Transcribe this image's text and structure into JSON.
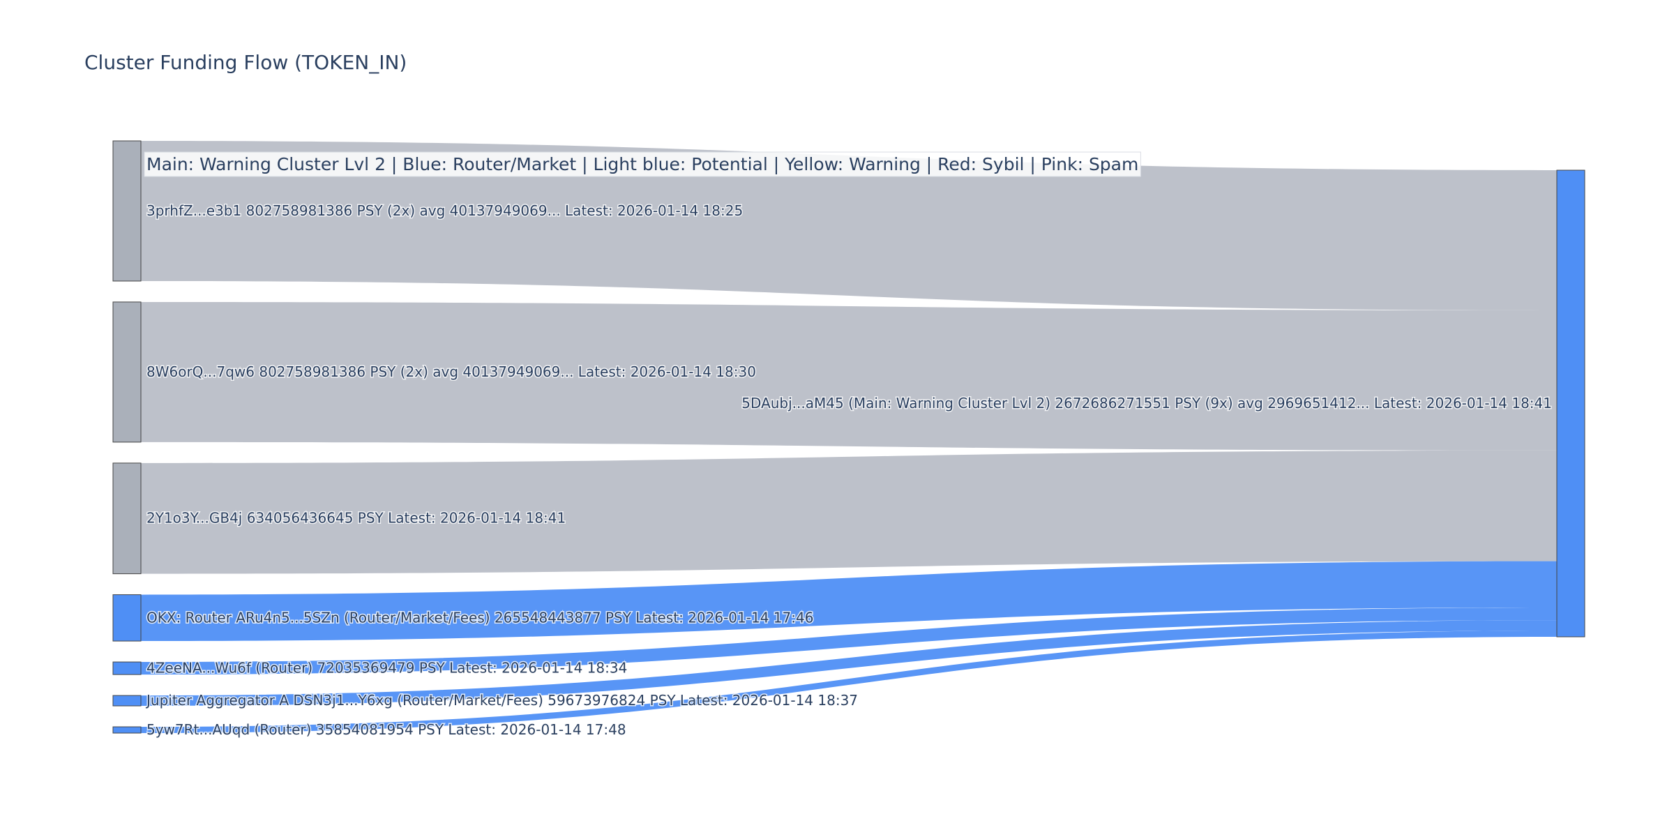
{
  "chart_data": {
    "type": "sankey",
    "title": "Cluster Funding Flow (TOKEN_IN)",
    "annotation": "Main: Warning Cluster Lvl 2  |  Blue: Router/Market | Light blue: Potential | Yellow: Warning | Red: Sybil | Pink: Spam",
    "nodes": [
      {
        "label": "3prhfZ...e3b1 802758981386 PSY (2x) avg 40137949069... Latest: 2026-01-14 18:25",
        "color": "#aab0ba"
      },
      {
        "label": "8W6orQ...7qw6 802758981386 PSY (2x) avg 40137949069... Latest: 2026-01-14 18:30",
        "color": "#aab0ba"
      },
      {
        "label": "2Y1o3Y...GB4j 634056436645 PSY Latest: 2026-01-14 18:41",
        "color": "#aab0ba"
      },
      {
        "label": "OKX: Router ARu4n5...5SZn (Router/Market/Fees) 265548443877 PSY Latest: 2026-01-14 17:46",
        "color": "#4f8ff5"
      },
      {
        "label": "4ZeeNA...Wu6f (Router) 72035369479 PSY Latest: 2026-01-14 18:34",
        "color": "#4f8ff5"
      },
      {
        "label": "Jupiter Aggregator A DSN3j1...Y6xg (Router/Market/Fees) 59673976824 PSY Latest: 2026-01-14 18:37",
        "color": "#4f8ff5"
      },
      {
        "label": "5yw7Rt...AUqd (Router) 35854081954 PSY Latest: 2026-01-14 17:48",
        "color": "#4f8ff5"
      },
      {
        "label": "5DAubj...aM45 (Main: Warning Cluster Lvl 2) 2672686271551 PSY (9x) avg 2969651412... Latest: 2026-01-14 18:41",
        "color": "#4f8ff5"
      }
    ],
    "links": [
      {
        "source": 0,
        "target": 7,
        "value": 802758981386,
        "color": "#b9bec7"
      },
      {
        "source": 1,
        "target": 7,
        "value": 802758981386,
        "color": "#b9bec7"
      },
      {
        "source": 2,
        "target": 7,
        "value": 634056436645,
        "color": "#b9bec7"
      },
      {
        "source": 3,
        "target": 7,
        "value": 265548443877,
        "color": "#4f8ff5"
      },
      {
        "source": 4,
        "target": 7,
        "value": 72035369479,
        "color": "#4f8ff5"
      },
      {
        "source": 5,
        "target": 7,
        "value": 59673976824,
        "color": "#4f8ff5"
      },
      {
        "source": 6,
        "target": 7,
        "value": 35854081954,
        "color": "#4f8ff5"
      }
    ]
  }
}
